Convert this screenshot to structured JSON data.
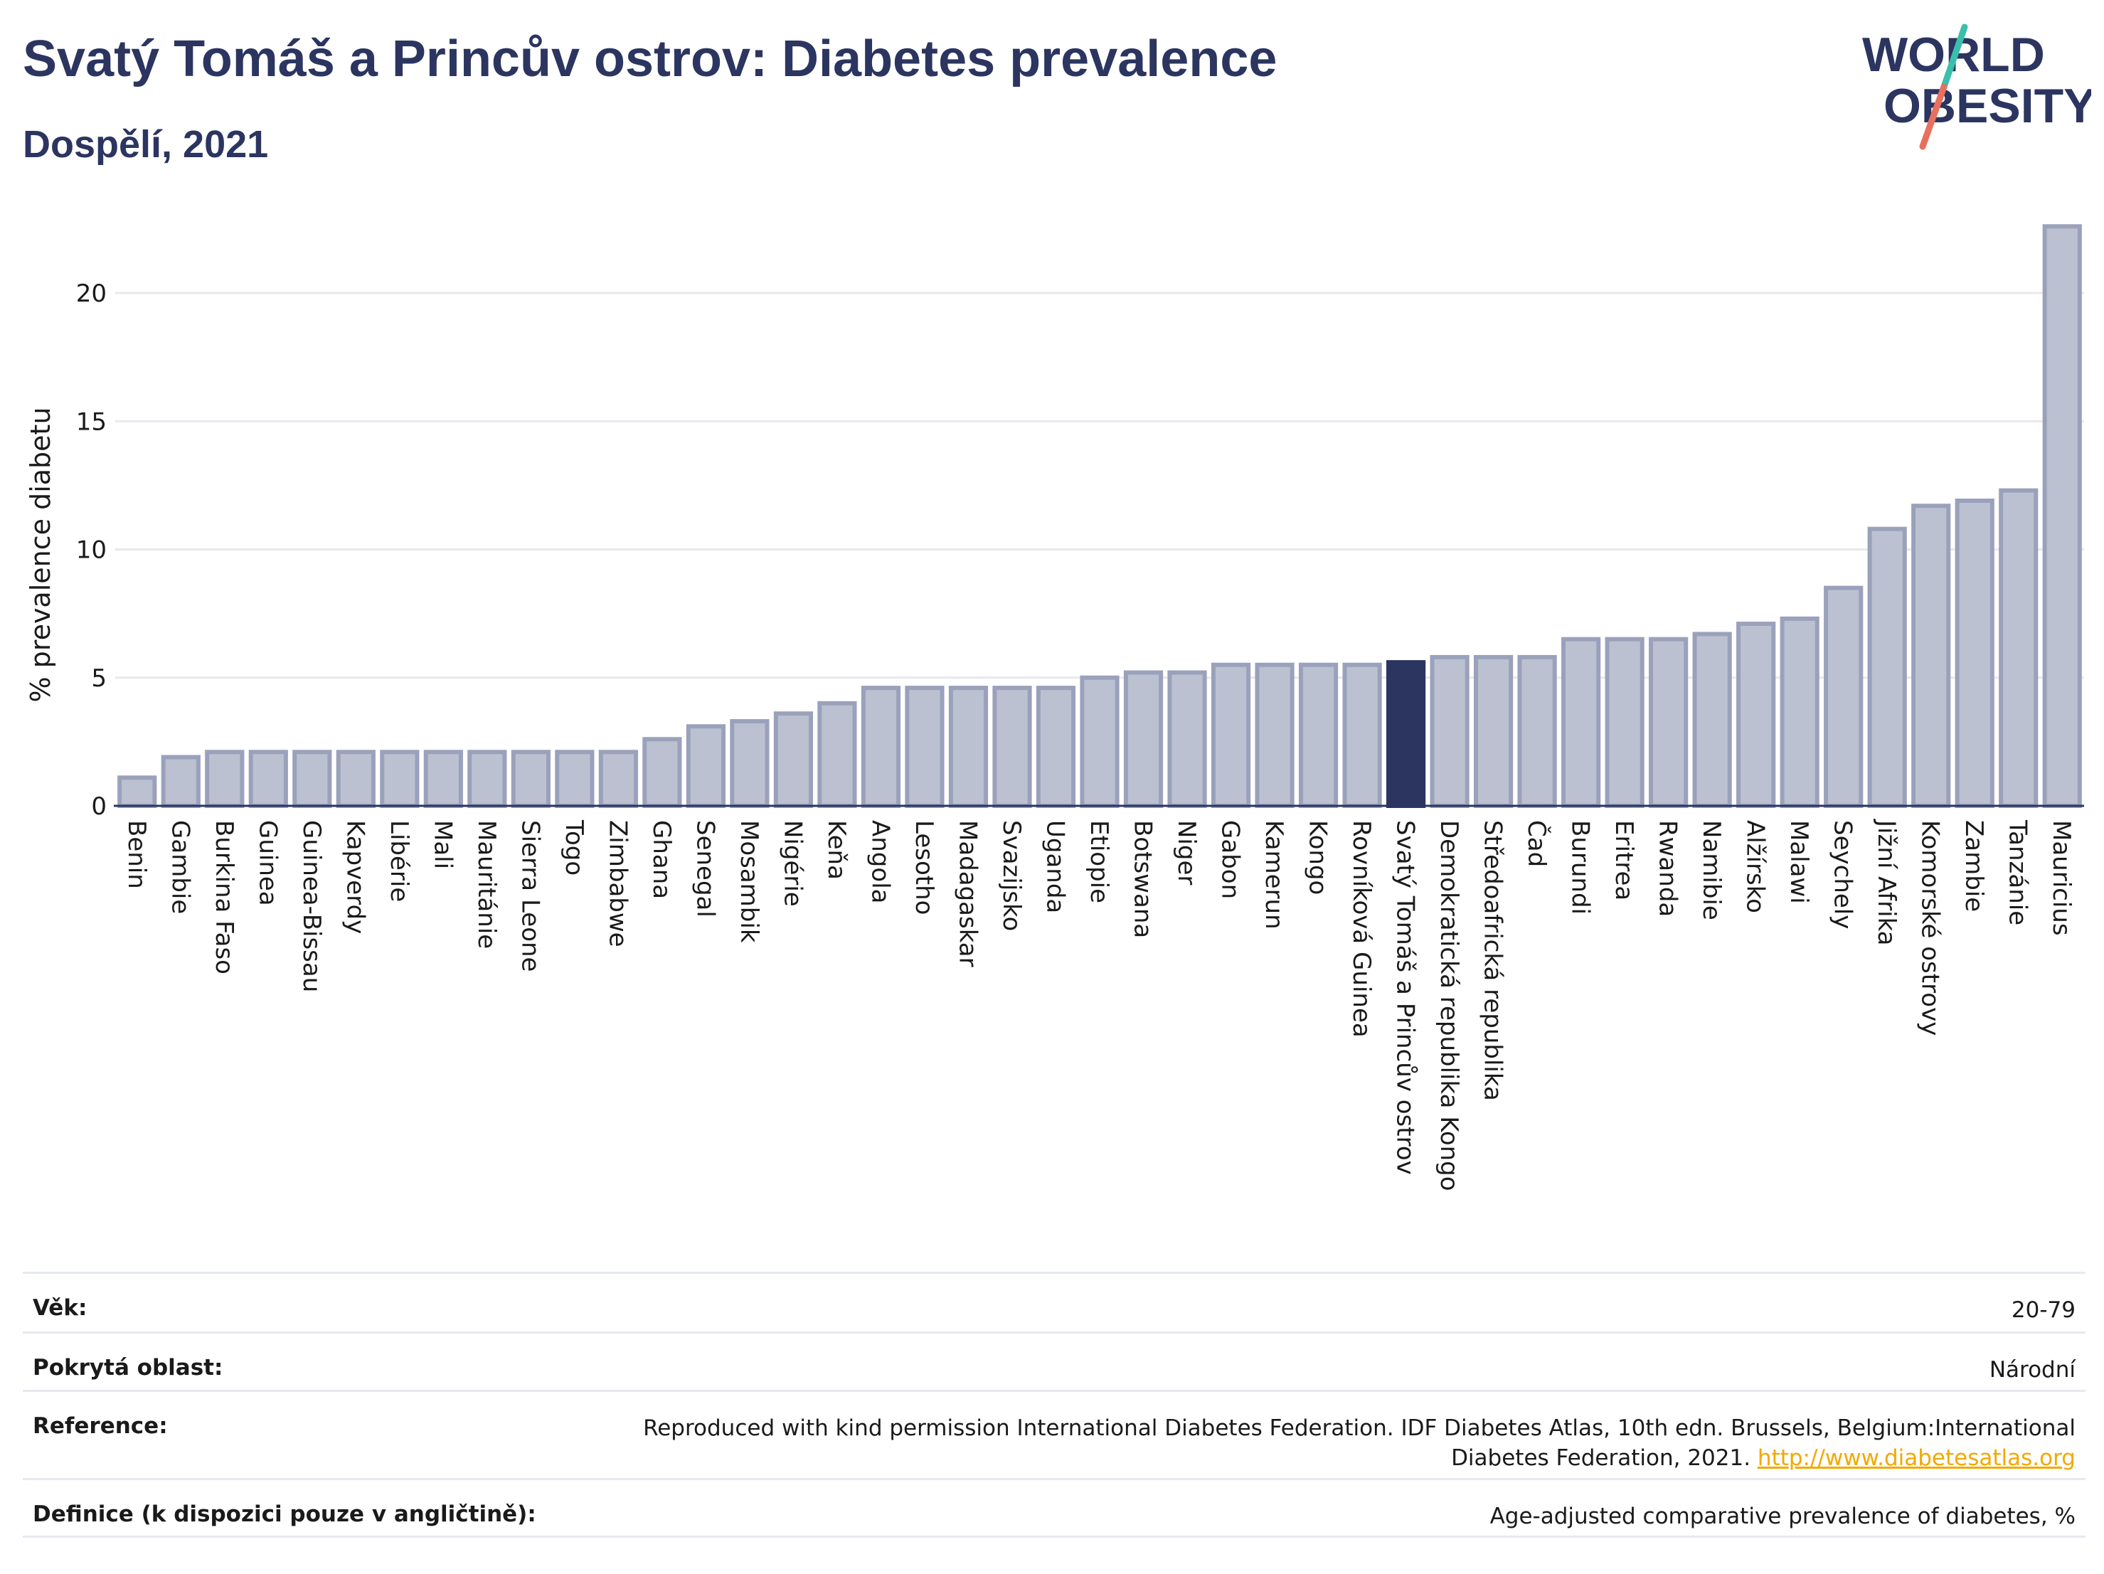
{
  "header": {
    "title": "Svatý Tomáš a Princův ostrov: Diabetes prevalence",
    "subtitle": "Dospělí, 2021"
  },
  "logo": {
    "line1": "WORLD",
    "line2": "OBESITY",
    "colors": {
      "text": "#2b3560",
      "slash_top": "#3bbfad",
      "slash_bottom": "#e8705f"
    }
  },
  "chart_data": {
    "type": "bar",
    "title": "Svatý Tomáš a Princův ostrov: Diabetes prevalence",
    "subtitle": "Dospělí, 2021",
    "xlabel": "",
    "ylabel": "% prevalence diabetu",
    "ylim": [
      0,
      23
    ],
    "yticks": [
      0,
      5,
      10,
      15,
      20
    ],
    "grid": true,
    "highlight": "Svatý Tomáš a Princův ostrov",
    "colors": {
      "bar": "#bcc1d1",
      "bar_stroke": "#9aa1bb",
      "highlight": "#2b3560",
      "grid": "#e8e8ee"
    },
    "categories": [
      "Benin",
      "Gambie",
      "Burkina Faso",
      "Guinea",
      "Guinea-Bissau",
      "Kapverdy",
      "Libérie",
      "Mali",
      "Mauritánie",
      "Sierra Leone",
      "Togo",
      "Zimbabwe",
      "Ghana",
      "Senegal",
      "Mosambik",
      "Nigérie",
      "Keňa",
      "Angola",
      "Lesotho",
      "Madagaskar",
      "Svazijsko",
      "Uganda",
      "Etiopie",
      "Botswana",
      "Niger",
      "Gabon",
      "Kamerun",
      "Kongo",
      "Rovníková Guinea",
      "Svatý Tomáš a Princův ostrov",
      "Demokratická republika Kongo",
      "Středoafrická republika",
      "Čad",
      "Burundi",
      "Eritrea",
      "Rwanda",
      "Namibie",
      "Alžírsko",
      "Malawi",
      "Seychely",
      "Jižní Afrika",
      "Komorské ostrovy",
      "Zambie",
      "Tanzánie",
      "Mauricius"
    ],
    "values": [
      1.1,
      1.9,
      2.1,
      2.1,
      2.1,
      2.1,
      2.1,
      2.1,
      2.1,
      2.1,
      2.1,
      2.1,
      2.6,
      3.1,
      3.3,
      3.6,
      4.0,
      4.6,
      4.6,
      4.6,
      4.6,
      4.6,
      5.0,
      5.2,
      5.2,
      5.5,
      5.5,
      5.5,
      5.5,
      5.6,
      5.8,
      5.8,
      5.8,
      6.5,
      6.5,
      6.5,
      6.7,
      7.1,
      7.3,
      8.5,
      10.8,
      11.7,
      11.9,
      12.3,
      22.6
    ]
  },
  "meta": [
    {
      "label": "Věk:",
      "value": "20-79"
    },
    {
      "label": "Pokrytá oblast:",
      "value": "Národní"
    },
    {
      "label": "Reference:",
      "value_line1": "Reproduced with kind permission International Diabetes Federation.  IDF Diabetes Atlas, 10th edn. Brussels, Belgium:International",
      "value_line2": "Diabetes Federation, 2021.",
      "link": "http://www.diabetesatlas.org"
    },
    {
      "label": "Definice (k dispozici pouze v angličtině):",
      "value": "Age-adjusted comparative prevalence of diabetes, %"
    }
  ]
}
